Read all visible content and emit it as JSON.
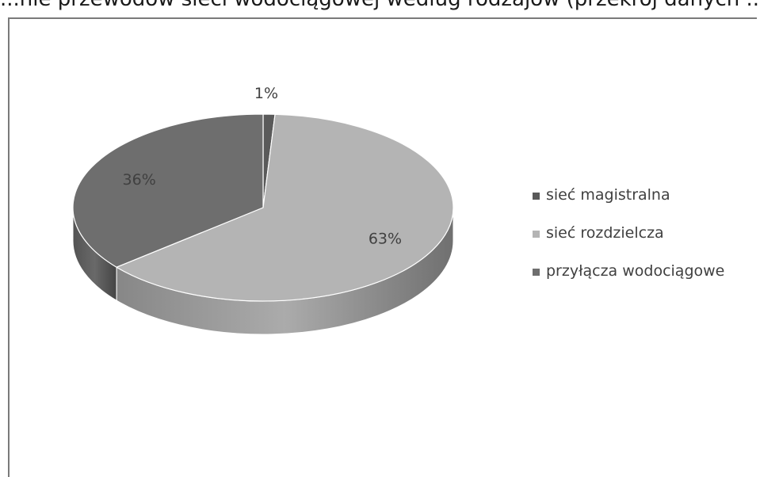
{
  "page": {
    "clipped_title": "...nie przewodów sieci wodociągowej według rodzajów (przekrój danych ...)"
  },
  "chart_data": {
    "type": "pie",
    "style": "3d",
    "title": "",
    "categories": [
      "sieć magistralna",
      "sieć rozdzielcza",
      "przyłącza wodociągowe"
    ],
    "values": [
      1,
      63,
      36
    ],
    "data_labels": [
      "1%",
      "63%",
      "36%"
    ],
    "colors": [
      "#5a5a5a",
      "#b4b4b4",
      "#6e6e6e"
    ],
    "legend_position": "right"
  }
}
